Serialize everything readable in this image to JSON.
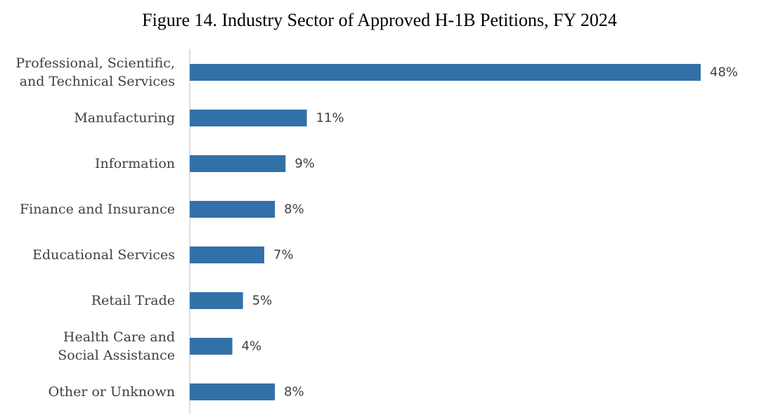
{
  "chart_data": {
    "type": "bar",
    "orientation": "horizontal",
    "title": "Figure 14. Industry Sector of Approved H-1B Petitions, FY 2024",
    "xlabel": "",
    "ylabel": "",
    "grid": false,
    "legend": "none",
    "xlim": [
      0,
      48
    ],
    "bar_color": "#3271A8",
    "categories": [
      [
        "Professional, Scientific,",
        "and Technical Services"
      ],
      [
        "Manufacturing"
      ],
      [
        "Information"
      ],
      [
        "Finance and Insurance"
      ],
      [
        "Educational Services"
      ],
      [
        "Retail Trade"
      ],
      [
        "Health Care and",
        "Social Assistance"
      ],
      [
        "Other or Unknown"
      ]
    ],
    "values": [
      48,
      11,
      9,
      8,
      7,
      5,
      4,
      8
    ],
    "data_labels": [
      "48%",
      "11%",
      "9%",
      "8%",
      "7%",
      "5%",
      "4%",
      "8%"
    ]
  }
}
